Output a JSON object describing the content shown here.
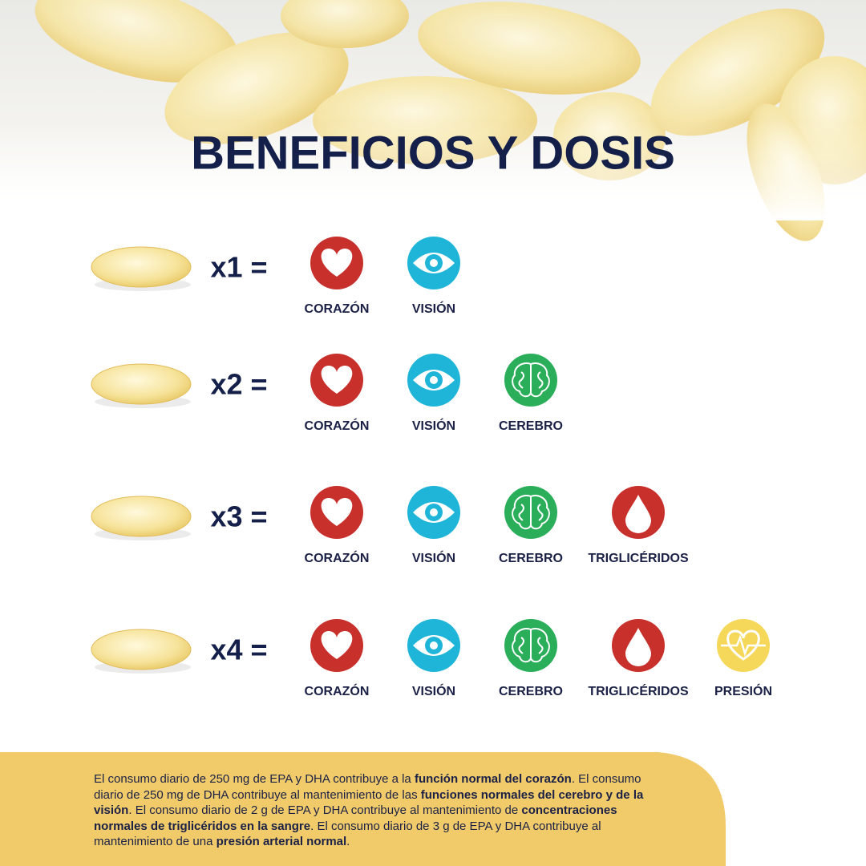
{
  "title": "BENEFICIOS Y DOSIS",
  "rows": [
    {
      "multiplier": "x1 =",
      "items": [
        "CORAZÓN",
        "VISIÓN"
      ]
    },
    {
      "multiplier": "x2 =",
      "items": [
        "CORAZÓN",
        "VISIÓN",
        "CEREBRO"
      ]
    },
    {
      "multiplier": "x3 =",
      "items": [
        "CORAZÓN",
        "VISIÓN",
        "CEREBRO",
        "TRIGLICÉRIDOS"
      ]
    },
    {
      "multiplier": "x4 =",
      "items": [
        "CORAZÓN",
        "VISIÓN",
        "CEREBRO",
        "TRIGLICÉRIDOS",
        "PRESIÓN"
      ]
    }
  ],
  "footnote": [
    {
      "text": "El consumo diario de 250 mg de EPA y DHA contribuye a la ",
      "bold": false
    },
    {
      "text": "función normal del corazón",
      "bold": true
    },
    {
      "text": ". El consumo diario de 250 mg de DHA contribuye al mantenimiento de las ",
      "bold": false
    },
    {
      "text": "funciones normales del cerebro y de la visión",
      "bold": true
    },
    {
      "text": ". El consumo diario de 2 g de EPA y DHA contribuye al mantenimiento de ",
      "bold": false
    },
    {
      "text": "concentraciones normales de triglicéridos en la sangre",
      "bold": true
    },
    {
      "text": ". El consumo diario de 3 g de EPA y DHA contribuye al mantenimiento de una ",
      "bold": false
    },
    {
      "text": "presión arterial normal",
      "bold": true
    },
    {
      "text": ".",
      "bold": false
    }
  ]
}
